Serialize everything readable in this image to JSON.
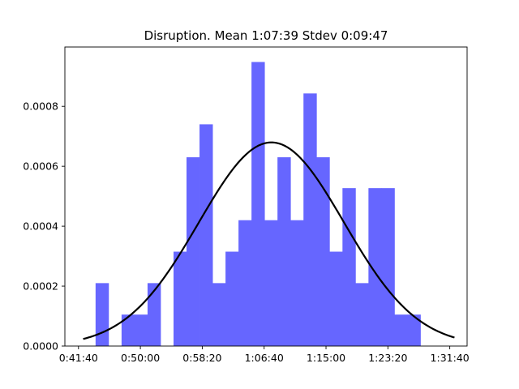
{
  "chart_data": {
    "type": "bar",
    "title": "Disruption. Mean 1:07:39 Stdev 0:09:47",
    "xlabel": "",
    "ylabel": "",
    "x_unit": "seconds (displayed as h:mm:ss)",
    "xlim": [
      2390,
      5640
    ],
    "ylim": [
      0,
      0.000998
    ],
    "x_ticks": [
      {
        "value": 2500,
        "label": "0:41:40"
      },
      {
        "value": 3000,
        "label": "0:50:00"
      },
      {
        "value": 3500,
        "label": "0:58:20"
      },
      {
        "value": 4000,
        "label": "1:06:40"
      },
      {
        "value": 4500,
        "label": "1:15:00"
      },
      {
        "value": 5000,
        "label": "1:23:20"
      },
      {
        "value": 5500,
        "label": "1:31:40"
      }
    ],
    "y_ticks": [
      {
        "value": 0,
        "label": "0.0000"
      },
      {
        "value": 0.0002,
        "label": "0.0002"
      },
      {
        "value": 0.0004,
        "label": "0.0004"
      },
      {
        "value": 0.0006,
        "label": "0.0006"
      },
      {
        "value": 0.0008,
        "label": "0.0008"
      }
    ],
    "histogram": {
      "color": "#6666ff",
      "bins": [
        {
          "x0": 2638,
          "x1": 2743,
          "value": 0.00021
        },
        {
          "x0": 2743,
          "x1": 2848,
          "value": 0.0
        },
        {
          "x0": 2848,
          "x1": 2953,
          "value": 0.000105
        },
        {
          "x0": 2953,
          "x1": 3058,
          "value": 0.000105
        },
        {
          "x0": 3058,
          "x1": 3163,
          "value": 0.00021
        },
        {
          "x0": 3163,
          "x1": 3268,
          "value": 0.0
        },
        {
          "x0": 3268,
          "x1": 3373,
          "value": 0.000315
        },
        {
          "x0": 3373,
          "x1": 3478,
          "value": 0.00063
        },
        {
          "x0": 3478,
          "x1": 3583,
          "value": 0.00074
        },
        {
          "x0": 3583,
          "x1": 3688,
          "value": 0.00021
        },
        {
          "x0": 3688,
          "x1": 3793,
          "value": 0.000315
        },
        {
          "x0": 3793,
          "x1": 3898,
          "value": 0.00042
        },
        {
          "x0": 3898,
          "x1": 4003,
          "value": 0.000948
        },
        {
          "x0": 4003,
          "x1": 4108,
          "value": 0.00042
        },
        {
          "x0": 4108,
          "x1": 4213,
          "value": 0.00063
        },
        {
          "x0": 4213,
          "x1": 4318,
          "value": 0.00042
        },
        {
          "x0": 4318,
          "x1": 4423,
          "value": 0.000843
        },
        {
          "x0": 4423,
          "x1": 4528,
          "value": 0.00063
        },
        {
          "x0": 4528,
          "x1": 4633,
          "value": 0.000315
        },
        {
          "x0": 4633,
          "x1": 4738,
          "value": 0.000527
        },
        {
          "x0": 4738,
          "x1": 4843,
          "value": 0.00021
        },
        {
          "x0": 4843,
          "x1": 4948,
          "value": 0.000527
        },
        {
          "x0": 4948,
          "x1": 5053,
          "value": 0.000527
        },
        {
          "x0": 5053,
          "x1": 5158,
          "value": 0.000105
        },
        {
          "x0": 5158,
          "x1": 5263,
          "value": 0.000105
        }
      ]
    },
    "curve": {
      "type": "line",
      "color": "#000000",
      "distribution": "normal",
      "mean": 4059,
      "stdev": 587,
      "x_range": [
        2538,
        5538
      ]
    }
  }
}
